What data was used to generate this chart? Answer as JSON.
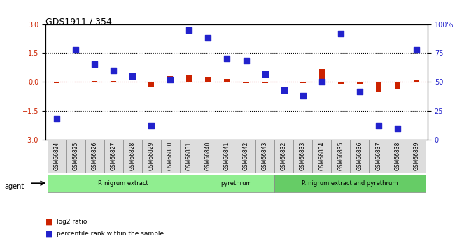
{
  "title": "GDS1911 / 354",
  "samples": [
    "GSM66824",
    "GSM66825",
    "GSM66826",
    "GSM66827",
    "GSM66828",
    "GSM66829",
    "GSM66830",
    "GSM66831",
    "GSM66840",
    "GSM66841",
    "GSM66842",
    "GSM66843",
    "GSM66832",
    "GSM66833",
    "GSM66834",
    "GSM66835",
    "GSM66836",
    "GSM66837",
    "GSM66838",
    "GSM66839"
  ],
  "log2_ratio": [
    -0.05,
    -0.03,
    0.05,
    0.05,
    0.02,
    -0.25,
    0.3,
    0.35,
    0.25,
    0.15,
    -0.05,
    -0.05,
    0.02,
    -0.05,
    0.65,
    -0.1,
    -0.1,
    -0.5,
    -0.35,
    0.08
  ],
  "percentile": [
    18,
    78,
    65,
    60,
    55,
    12,
    52,
    95,
    88,
    70,
    68,
    57,
    43,
    38,
    50,
    92,
    42,
    12,
    10,
    78
  ],
  "groups": [
    {
      "label": "P. nigrum extract",
      "start": 0,
      "end": 8,
      "color": "#90EE90"
    },
    {
      "label": "pyrethrum",
      "start": 8,
      "end": 12,
      "color": "#90EE90"
    },
    {
      "label": "P. nigrum extract and pyrethrum",
      "start": 12,
      "end": 20,
      "color": "#32CD32"
    }
  ],
  "bar_color_red": "#CC2200",
  "bar_color_blue": "#2222CC",
  "dotted_line_color": "#000000",
  "ref_line_color": "#CC0000",
  "ylim_left": [
    -3,
    3
  ],
  "ylim_right": [
    0,
    100
  ],
  "yticks_left": [
    -3,
    -1.5,
    0,
    1.5,
    3
  ],
  "yticks_right": [
    0,
    25,
    50,
    75,
    100
  ],
  "hline_dotted": [
    -1.5,
    1.5
  ],
  "legend_items": [
    "log2 ratio",
    "percentile rank within the sample"
  ]
}
